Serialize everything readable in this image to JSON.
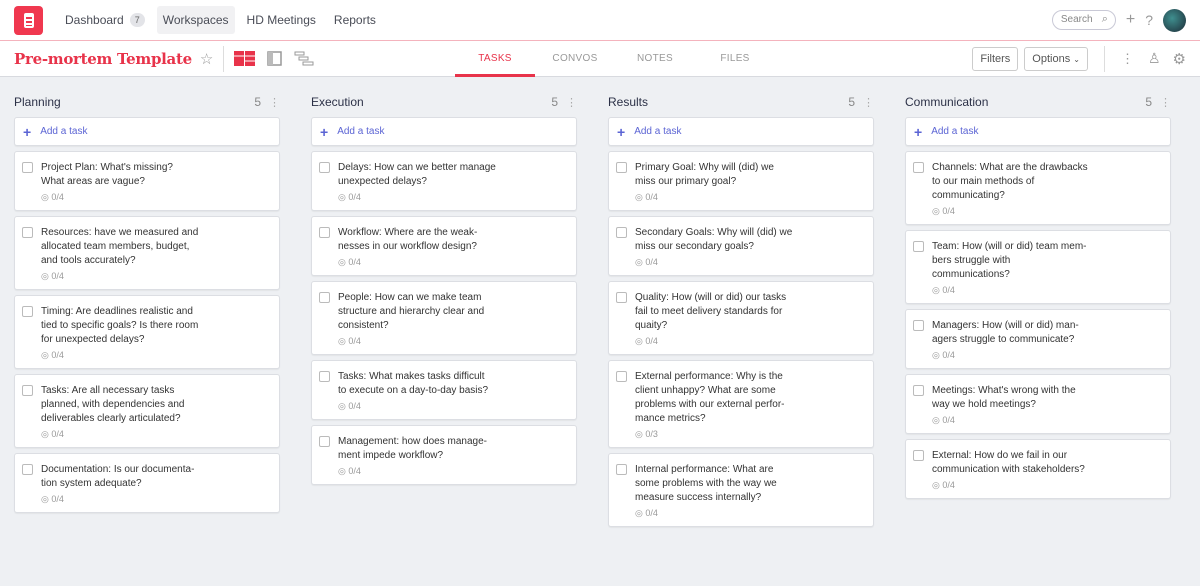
{
  "topbar": {
    "nav": [
      {
        "label": "Dashboard",
        "badge": "7"
      },
      {
        "label": "Workspaces",
        "active": true
      },
      {
        "label": "HD Meetings"
      },
      {
        "label": "Reports"
      }
    ],
    "search_placeholder": "Search"
  },
  "header": {
    "title": "Pre-mortem Template",
    "tabs": [
      "TASKS",
      "CONVOS",
      "NOTES",
      "FILES"
    ],
    "active_tab": "TASKS",
    "filters": "Filters",
    "options": "Options"
  },
  "colors": {
    "accent": "#e8334a",
    "link": "#5b64d4"
  },
  "add_task_label": "Add a task",
  "columns": [
    {
      "name": "Planning",
      "count": "5",
      "tasks": [
        {
          "title": "Project Plan: What's missing?\nWhat areas are vague?",
          "progress": "0/4"
        },
        {
          "title": "Resources: have we measured and\nallocated team members, budget,\nand tools accurately?",
          "progress": "0/4"
        },
        {
          "title": "Timing: Are deadlines realistic and\ntied to specific goals? Is there room\nfor unexpected delays?",
          "progress": "0/4"
        },
        {
          "title": "Tasks: Are all necessary tasks\nplanned, with dependencies and\ndeliverables clearly articulated?",
          "progress": "0/4"
        },
        {
          "title": "Documentation: Is our documenta-\ntion system adequate?",
          "progress": "0/4"
        }
      ]
    },
    {
      "name": "Execution",
      "count": "5",
      "tasks": [
        {
          "title": "Delays: How can we better manage\nunexpected delays?",
          "progress": "0/4"
        },
        {
          "title": "Workflow: Where are the weak-\nnesses in our workflow design?",
          "progress": "0/4"
        },
        {
          "title": "People: How can we make team\nstructure and hierarchy clear and\nconsistent?",
          "progress": "0/4"
        },
        {
          "title": "Tasks: What makes tasks difficult\nto execute on a day-to-day basis?",
          "progress": "0/4"
        },
        {
          "title": "Management: how does manage-\nment impede workflow?",
          "progress": "0/4"
        }
      ]
    },
    {
      "name": "Results",
      "count": "5",
      "tasks": [
        {
          "title": "Primary Goal: Why will (did) we\nmiss our primary goal?",
          "progress": "0/4"
        },
        {
          "title": "Secondary Goals: Why will (did) we\nmiss our secondary goals?",
          "progress": "0/4"
        },
        {
          "title": "Quality: How (will or did) our tasks\nfail to meet delivery standards for\nquaity?",
          "progress": "0/4"
        },
        {
          "title": "External performance: Why is the\nclient unhappy? What are some\nproblems with our external perfor-\nmance metrics?",
          "progress": "0/3"
        },
        {
          "title": "Internal performance: What are\nsome problems with the way we\nmeasure success internally?",
          "progress": "0/4"
        }
      ]
    },
    {
      "name": "Communication",
      "count": "5",
      "tasks": [
        {
          "title": "Channels: What are the drawbacks\nto our main methods of\ncommunicating?",
          "progress": "0/4"
        },
        {
          "title": "Team: How (will or did) team mem-\nbers struggle with\ncommunications?",
          "progress": "0/4"
        },
        {
          "title": "Managers: How (will or did) man-\nagers struggle to communicate?",
          "progress": "0/4"
        },
        {
          "title": "Meetings: What's wrong with the\nway we hold meetings?",
          "progress": "0/4"
        },
        {
          "title": "External: How do we fail in our\ncommunication with stakeholders?",
          "progress": "0/4"
        }
      ]
    }
  ]
}
